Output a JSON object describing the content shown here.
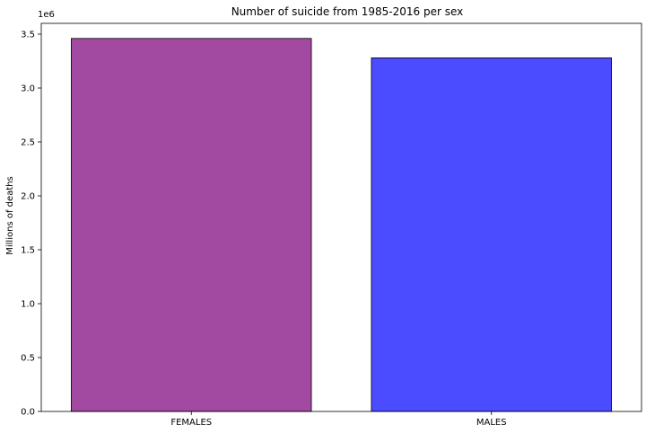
{
  "chart_data": {
    "type": "bar",
    "title": "Number of suicide from 1985-2016 per sex",
    "xlabel": "",
    "ylabel": "Millions of deaths",
    "y_offset_label": "1e6",
    "categories": [
      "FEMALES",
      "MALES"
    ],
    "values": [
      3.46,
      3.28
    ],
    "colors": [
      "#a24aa2",
      "#4b4bff"
    ],
    "ylim": [
      0,
      3.6
    ],
    "yticks": [
      0.0,
      0.5,
      1.0,
      1.5,
      2.0,
      2.5,
      3.0,
      3.5
    ],
    "ytick_labels": [
      "0.0",
      "0.5",
      "1.0",
      "1.5",
      "2.0",
      "2.5",
      "3.0",
      "3.5"
    ],
    "grid": false,
    "legend": "none"
  }
}
